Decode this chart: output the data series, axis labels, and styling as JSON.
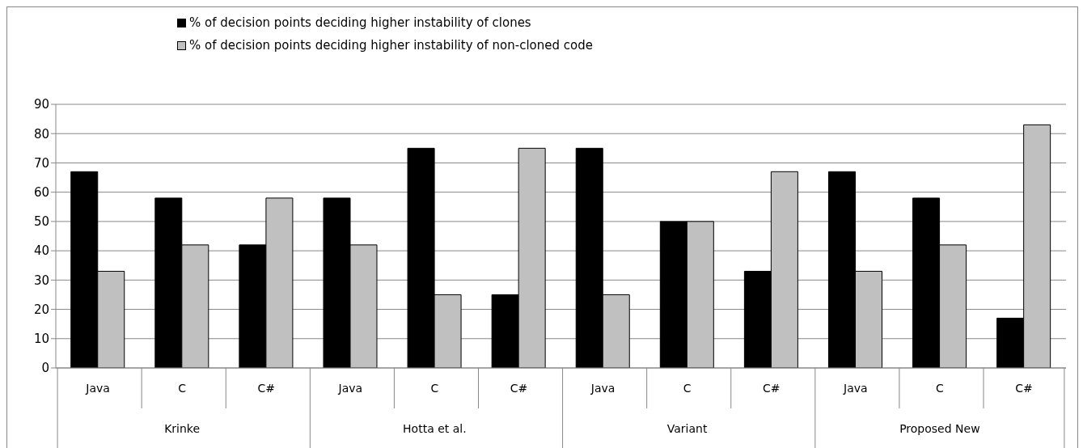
{
  "chart_data": {
    "type": "bar",
    "categories": [
      "Java",
      "C",
      "C#",
      "Java",
      "C",
      "C#",
      "Java",
      "C",
      "C#",
      "Java",
      "C",
      "C#"
    ],
    "series": [
      {
        "name": "% of decision points deciding higher instability of clones",
        "color": "#000000",
        "values": [
          67,
          58,
          42,
          58,
          75,
          25,
          75,
          50,
          33,
          67,
          58,
          17
        ]
      },
      {
        "name": "% of decision points deciding higher instability of non-cloned code",
        "color": "#c0c0c0",
        "values": [
          33,
          42,
          58,
          42,
          25,
          75,
          25,
          50,
          67,
          33,
          42,
          83
        ]
      }
    ],
    "annotations": [
      "Krinke",
      "Hotta et al.",
      "Variant",
      "Proposed New"
    ],
    "ylim": [
      0,
      90
    ],
    "yticks": [
      0,
      10,
      20,
      30,
      40,
      50,
      60,
      70,
      80,
      90
    ],
    "grid": "y",
    "legend": "top"
  }
}
